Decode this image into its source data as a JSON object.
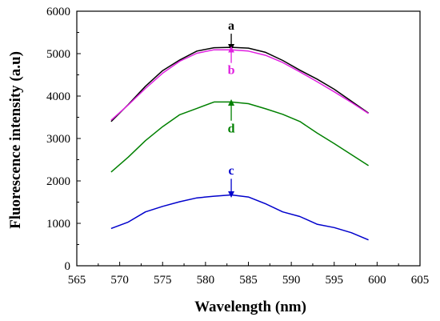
{
  "chart_data": {
    "type": "line",
    "xlabel": "Wavelength (nm)",
    "ylabel": "Fluorescence intensity (a.u)",
    "xlim": [
      565,
      605
    ],
    "ylim": [
      0,
      6000
    ],
    "xticks": [
      565,
      570,
      575,
      580,
      585,
      590,
      595,
      600,
      605
    ],
    "yticks": [
      0,
      1000,
      2000,
      3000,
      4000,
      5000,
      6000
    ],
    "grid": false,
    "x": [
      569,
      571,
      573,
      575,
      577,
      579,
      581,
      583,
      585,
      587,
      589,
      591,
      593,
      595,
      597,
      599
    ],
    "series": [
      {
        "name": "a",
        "color": "#000000",
        "values": [
          3400,
          3800,
          4230,
          4600,
          4850,
          5060,
          5140,
          5150,
          5130,
          5030,
          4840,
          4610,
          4400,
          4160,
          3880,
          3600
        ]
      },
      {
        "name": "b",
        "color": "#e020e0",
        "values": [
          3430,
          3790,
          4180,
          4540,
          4820,
          5010,
          5090,
          5090,
          5060,
          4960,
          4790,
          4570,
          4340,
          4100,
          3850,
          3590
        ]
      },
      {
        "name": "d",
        "color": "#008000",
        "values": [
          2210,
          2560,
          2950,
          3280,
          3560,
          3710,
          3860,
          3860,
          3820,
          3700,
          3570,
          3400,
          3130,
          2880,
          2620,
          2360
        ]
      },
      {
        "name": "c",
        "color": "#0000cc",
        "values": [
          880,
          1030,
          1270,
          1400,
          1510,
          1600,
          1640,
          1670,
          1620,
          1460,
          1270,
          1160,
          980,
          900,
          780,
          610
        ]
      }
    ],
    "annotations": [
      {
        "text": "a",
        "x": 583,
        "color": "#000000",
        "label_y": 5570,
        "arrow_from": 5470,
        "arrow_to": 5150
      },
      {
        "text": "b",
        "x": 583,
        "color": "#e020e0",
        "label_y": 4520,
        "arrow_from": 4780,
        "arrow_to": 5100
      },
      {
        "text": "d",
        "x": 583,
        "color": "#008000",
        "label_y": 3140,
        "arrow_from": 3420,
        "arrow_to": 3850
      },
      {
        "text": "c",
        "x": 583,
        "color": "#0000cc",
        "label_y": 2150,
        "arrow_from": 2050,
        "arrow_to": 1680
      }
    ]
  }
}
